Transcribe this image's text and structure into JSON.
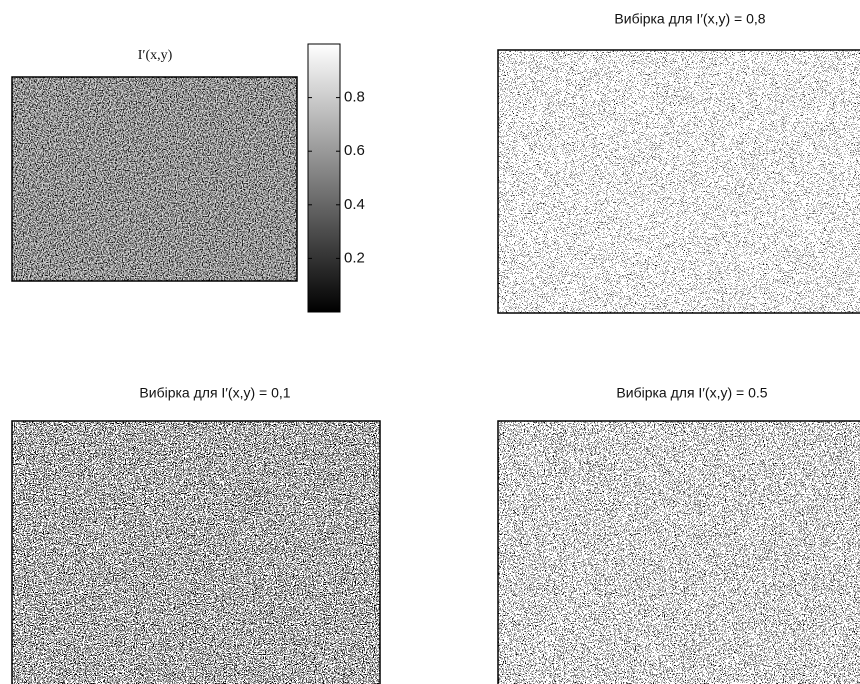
{
  "panels": [
    {
      "title": "I′(x,y)"
    },
    {
      "title": "Вибірка для I′(x,y) = 0,8"
    },
    {
      "title": "Вибірка для I′(x,y) = 0,1"
    },
    {
      "title": "Вибірка для I′(x,y) = 0.5"
    }
  ],
  "colorbar": {
    "ylim": [
      0,
      1
    ],
    "yticks": [
      0.2,
      0.4,
      0.6,
      0.8
    ]
  }
}
